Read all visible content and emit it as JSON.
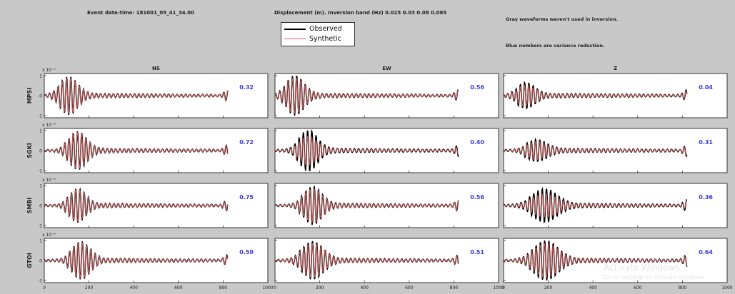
{
  "header": {
    "event_label": "Event date-time: 181001_05_41_34.00",
    "displacement_label": "Displacement (m). Inversion band (Hz) 0.025 0.03 0.08 0.085",
    "note_gray": "Gray waveforms weren't used in inversion.",
    "note_blue": "Blue numbers are variance reduction."
  },
  "watermark": {
    "line1": "Activate Windows",
    "line2": "Go to Settings to activate Windows."
  },
  "colors": {
    "figure_bg": "#c8c8c8",
    "axes_bg": "#ffffff",
    "observed": "#000000",
    "synthetic": "#e06060",
    "variance_text": "#3a3ae0"
  },
  "chart_data": {
    "type": "line",
    "title": "",
    "legend": {
      "position": "top-center",
      "entries": [
        "Observed",
        "Synthetic"
      ]
    },
    "columns": [
      "NS",
      "EW",
      "Z"
    ],
    "stations": [
      "MPSI",
      "SGKI",
      "SMBI",
      "GTOI"
    ],
    "row_exponent_labels": [
      "x 10⁻⁵",
      "x 10⁻⁵",
      "x 10⁻⁵",
      "x 10⁻⁵"
    ],
    "xlim": [
      0,
      1000
    ],
    "xticks": [
      0,
      200,
      400,
      600,
      800,
      1000
    ],
    "ylim": [
      -1,
      1
    ],
    "yticks": [
      -1,
      0,
      1
    ],
    "series": [
      {
        "name": "Observed",
        "color": "#000000"
      },
      {
        "name": "Synthetic",
        "color": "#e06060"
      }
    ],
    "panels": [
      {
        "station": "MPSI",
        "component": "NS",
        "variance_reduction": "0.32",
        "packet_center": 110,
        "packet_width": 55,
        "peak": 0.85,
        "synthetic_scale": 0.95
      },
      {
        "station": "MPSI",
        "component": "EW",
        "variance_reduction": "0.56",
        "packet_center": 90,
        "packet_width": 55,
        "peak": 0.9,
        "synthetic_scale": 0.9
      },
      {
        "station": "MPSI",
        "component": "Z",
        "variance_reduction": "0.04",
        "packet_center": 100,
        "packet_width": 55,
        "peak": 0.55,
        "synthetic_scale": 0.8
      },
      {
        "station": "SGKI",
        "component": "NS",
        "variance_reduction": "0.72",
        "packet_center": 150,
        "packet_width": 55,
        "peak": 0.85,
        "synthetic_scale": 0.95
      },
      {
        "station": "SGKI",
        "component": "EW",
        "variance_reduction": "0.40",
        "packet_center": 150,
        "packet_width": 55,
        "peak": 0.95,
        "synthetic_scale": 0.7
      },
      {
        "station": "SGKI",
        "component": "Z",
        "variance_reduction": "0.31",
        "packet_center": 150,
        "packet_width": 60,
        "peak": 0.45,
        "synthetic_scale": 0.8
      },
      {
        "station": "SMBI",
        "component": "NS",
        "variance_reduction": "0.75",
        "packet_center": 150,
        "packet_width": 50,
        "peak": 0.75,
        "synthetic_scale": 0.95
      },
      {
        "station": "SMBI",
        "component": "EW",
        "variance_reduction": "0.56",
        "packet_center": 170,
        "packet_width": 55,
        "peak": 0.85,
        "synthetic_scale": 0.9
      },
      {
        "station": "SMBI",
        "component": "Z",
        "variance_reduction": "0.36",
        "packet_center": 185,
        "packet_width": 75,
        "peak": 0.75,
        "synthetic_scale": 0.7
      },
      {
        "station": "GTOI",
        "component": "NS",
        "variance_reduction": "0.59",
        "packet_center": 165,
        "packet_width": 55,
        "peak": 0.85,
        "synthetic_scale": 0.95
      },
      {
        "station": "GTOI",
        "component": "EW",
        "variance_reduction": "0.51",
        "packet_center": 170,
        "packet_width": 65,
        "peak": 0.85,
        "synthetic_scale": 0.9
      },
      {
        "station": "GTOI",
        "component": "Z",
        "variance_reduction": "0.64",
        "packet_center": 190,
        "packet_width": 75,
        "peak": 0.9,
        "synthetic_scale": 0.85
      }
    ]
  }
}
